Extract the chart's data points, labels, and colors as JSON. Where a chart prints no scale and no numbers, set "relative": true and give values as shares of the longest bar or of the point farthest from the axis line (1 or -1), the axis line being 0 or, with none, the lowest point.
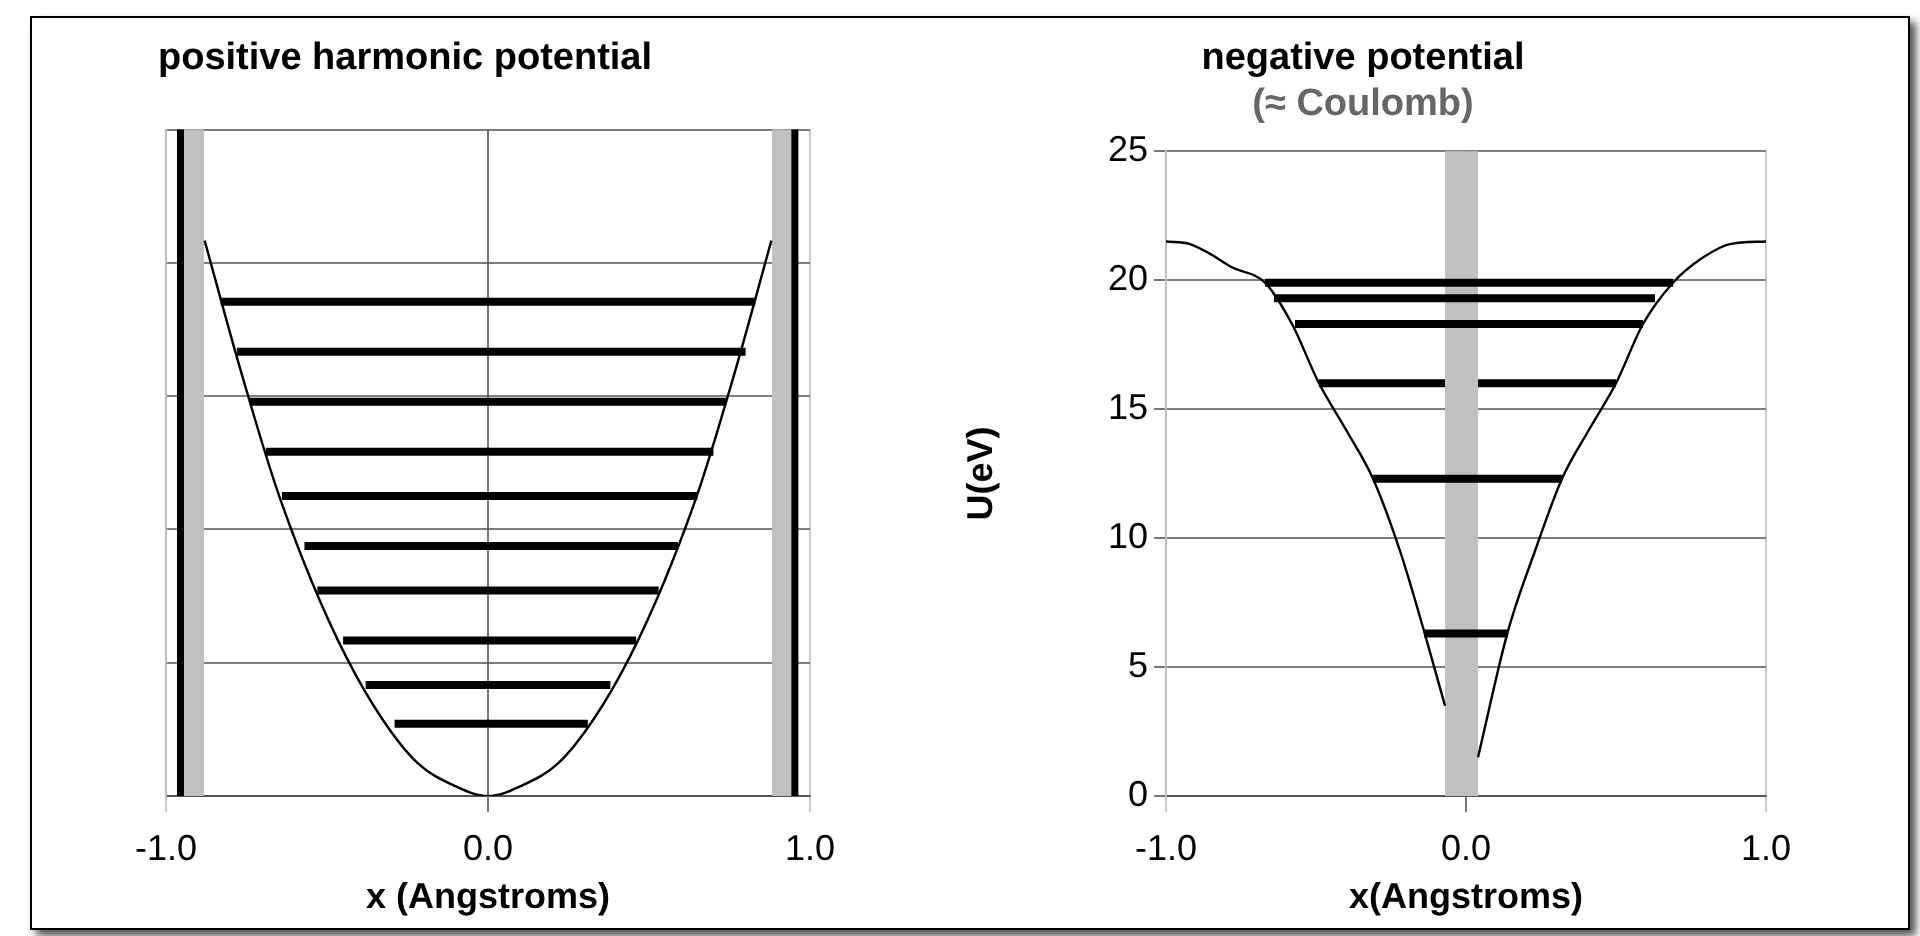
{
  "chart_data": [
    {
      "type": "line",
      "title": "positive harmonic potential",
      "xlabel": "x (Angstroms)",
      "relative": true,
      "grid": true,
      "tick_labels": "x",
      "xlim": [
        -1,
        1
      ],
      "xticks": [
        {
          "value": -1,
          "label": "-1.0"
        },
        {
          "value": 0,
          "label": "0.0"
        },
        {
          "value": 1,
          "label": "1.0"
        }
      ],
      "bands": [
        {
          "axis": "x",
          "from": -0.944,
          "to": -0.882,
          "color": "#c0c0c0"
        },
        {
          "axis": "x",
          "from": 0.882,
          "to": 0.944,
          "color": "#c0c0c0"
        }
      ],
      "ref_lines": [
        {
          "axis": "x",
          "value": -0.955,
          "color": "#000000"
        },
        {
          "axis": "x",
          "value": 0.953,
          "color": "#000000"
        }
      ],
      "series": [
        {
          "color": "#000000",
          "x": [
            -0.88,
            -0.77,
            -0.66,
            -0.55,
            -0.44,
            -0.33,
            -0.22,
            -0.11,
            0,
            0.11,
            0.22,
            0.33,
            0.44,
            0.55,
            0.66,
            0.77,
            0.88
          ],
          "values": [
            1,
            0.77,
            0.56,
            0.39,
            0.25,
            0.14,
            0.06,
            0.02,
            0,
            0.02,
            0.06,
            0.14,
            0.25,
            0.39,
            0.56,
            0.77,
            1
          ]
        },
        {
          "color": "#000000",
          "x": [
            -0.83,
            0.83
          ],
          "values": [
            0.89,
            0.89
          ]
        },
        {
          "color": "#000000",
          "x": [
            -0.78,
            0.8
          ],
          "values": [
            0.8,
            0.8
          ]
        },
        {
          "color": "#000000",
          "x": [
            -0.74,
            0.74
          ],
          "values": [
            0.71,
            0.71
          ]
        },
        {
          "color": "#000000",
          "x": [
            -0.69,
            0.7
          ],
          "values": [
            0.62,
            0.62
          ]
        },
        {
          "color": "#000000",
          "x": [
            -0.64,
            0.65
          ],
          "values": [
            0.54,
            0.54
          ]
        },
        {
          "color": "#000000",
          "x": [
            -0.57,
            0.59
          ],
          "values": [
            0.45,
            0.45
          ]
        },
        {
          "color": "#000000",
          "x": [
            -0.53,
            0.53
          ],
          "values": [
            0.37,
            0.37
          ]
        },
        {
          "color": "#000000",
          "x": [
            -0.45,
            0.46
          ],
          "values": [
            0.28,
            0.28
          ]
        },
        {
          "color": "#000000",
          "x": [
            -0.38,
            0.38
          ],
          "values": [
            0.2,
            0.2
          ]
        },
        {
          "color": "#000000",
          "x": [
            -0.29,
            0.31
          ],
          "values": [
            0.13,
            0.13
          ]
        }
      ]
    },
    {
      "type": "line",
      "title": "negative potential",
      "subtitle": "(≈ Coulomb)",
      "xlabel": "x(Angstroms)",
      "ylabel": "U(eV)",
      "grid": true,
      "xlim": [
        -1,
        1
      ],
      "xticks": [
        {
          "value": -1,
          "label": "-1.0"
        },
        {
          "value": 0,
          "label": "0.0"
        },
        {
          "value": 1,
          "label": "1.0"
        }
      ],
      "ylim": [
        0,
        25
      ],
      "yticks": [
        0,
        5,
        10,
        15,
        20,
        25
      ],
      "bands": [
        {
          "axis": "x",
          "from": -0.07,
          "to": 0.04,
          "color": "#c0c0c0"
        }
      ],
      "series": [
        {
          "color": "#000000",
          "x": [
            -1,
            -0.92,
            -0.85,
            -0.78,
            -0.67,
            -0.58,
            -0.49,
            -0.4,
            -0.31,
            -0.22,
            -0.14,
            -0.07
          ],
          "values": [
            21.5,
            21.4,
            21,
            20.5,
            19.9,
            18.3,
            16,
            14.2,
            12.3,
            9.5,
            6.4,
            3.5
          ]
        },
        {
          "color": "#000000",
          "x": [
            0.04,
            0.14,
            0.23,
            0.32,
            0.41,
            0.5,
            0.59,
            0.69,
            0.78,
            0.88,
            1
          ],
          "values": [
            1.5,
            6.4,
            9.5,
            12.3,
            14.2,
            16,
            18.3,
            19.9,
            20.8,
            21.4,
            21.5
          ]
        },
        {
          "color": "#000000",
          "x": [
            -0.67,
            0.69
          ],
          "values": [
            19.9,
            19.9
          ]
        },
        {
          "color": "#000000",
          "x": [
            -0.64,
            0.63
          ],
          "values": [
            19.3,
            19.3
          ]
        },
        {
          "color": "#000000",
          "x": [
            -0.57,
            0.59
          ],
          "values": [
            18.3,
            18.3
          ]
        },
        {
          "color": "#000000",
          "x": [
            -0.49,
            -0.07
          ],
          "values": [
            16,
            16
          ]
        },
        {
          "color": "#000000",
          "x": [
            0.04,
            0.5
          ],
          "values": [
            16,
            16
          ]
        },
        {
          "color": "#000000",
          "x": [
            -0.31,
            0.32
          ],
          "values": [
            12.3,
            12.3
          ]
        },
        {
          "color": "#000000",
          "x": [
            -0.14,
            0.14
          ],
          "values": [
            6.3,
            6.3
          ]
        }
      ]
    }
  ]
}
